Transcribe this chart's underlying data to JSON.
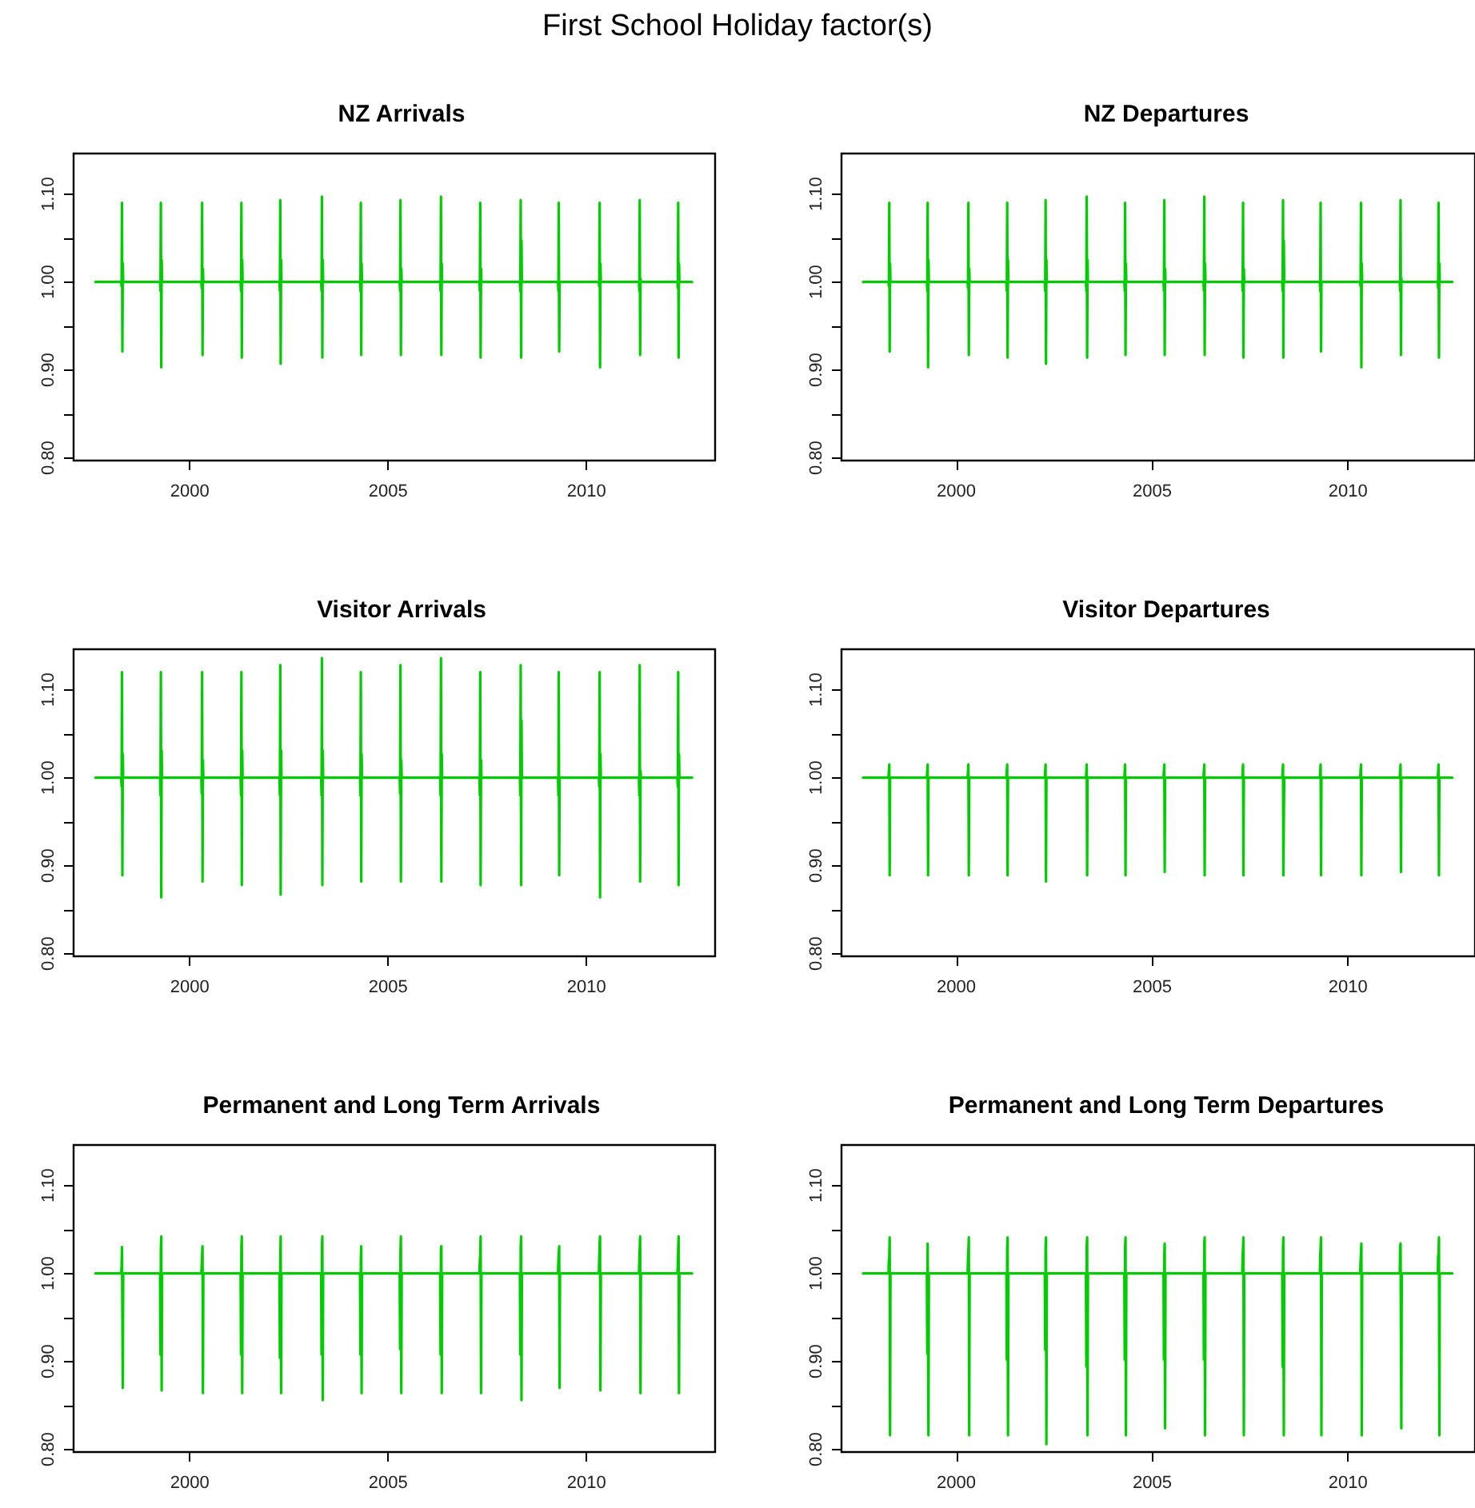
{
  "chart_data": [
    {
      "type": "line",
      "title": "NZ Arrivals",
      "annotations": [
        "First School Holiday factor(s)"
      ],
      "xlim": [
        1997.07,
        2013.24
      ],
      "xticks": [
        2000,
        2005,
        2010
      ],
      "ylim": [
        0.797,
        1.146
      ],
      "yticks": [
        {
          "value": 0.8,
          "label": "0.80"
        },
        {
          "value": 0.85,
          "label": null
        },
        {
          "value": 0.9,
          "label": "0.90"
        },
        {
          "value": 0.95,
          "label": null
        },
        {
          "value": 1.0,
          "label": "1.00"
        },
        {
          "value": 1.05,
          "label": null
        },
        {
          "value": 1.1,
          "label": "1.10"
        }
      ],
      "grid": false,
      "marker": "none",
      "x": [
        1997.62,
        1998.27,
        1998.28,
        1998.29,
        1998.3,
        1998.31,
        1998.32,
        1999.25,
        1999.26,
        1999.27,
        1999.28,
        1999.29,
        1999.3,
        2000.29,
        2000.3,
        2000.31,
        2000.32,
        2000.33,
        2000.34,
        2001.28,
        2001.29,
        2001.3,
        2001.31,
        2001.32,
        2001.33,
        2002.26,
        2002.27,
        2002.28,
        2002.29,
        2002.3,
        2002.31,
        2003.31,
        2003.32,
        2003.33,
        2003.34,
        2003.35,
        2003.36,
        2004.29,
        2004.3,
        2004.31,
        2004.32,
        2004.33,
        2004.34,
        2005.29,
        2005.3,
        2005.31,
        2005.32,
        2005.33,
        2005.34,
        2006.31,
        2006.32,
        2006.33,
        2006.34,
        2006.35,
        2006.36,
        2007.3,
        2007.31,
        2007.32,
        2007.33,
        2007.34,
        2007.35,
        2008.32,
        2008.33,
        2008.34,
        2008.35,
        2008.36,
        2008.37,
        2009.28,
        2009.29,
        2009.3,
        2009.31,
        2009.32,
        2009.33,
        2010.31,
        2010.32,
        2010.33,
        2010.34,
        2010.35,
        2010.36,
        2011.32,
        2011.33,
        2011.34,
        2011.35,
        2011.36,
        2011.37,
        2012.29,
        2012.3,
        2012.31,
        2012.32,
        2012.33,
        2012.34,
        2012.66
      ],
      "series": [
        {
          "color": "#00cc00",
          "values": [
            1,
            1,
            0.995,
            1.09,
            0.921,
            1.021,
            1,
            1,
            0.99,
            1.09,
            0.903,
            1.025,
            1,
            1,
            0.993,
            1.09,
            0.917,
            1.015,
            1,
            1,
            0.99,
            1.09,
            0.914,
            1.025,
            1,
            1,
            0.99,
            1.093,
            0.907,
            1.025,
            1,
            1,
            0.99,
            1.097,
            0.914,
            1.025,
            1,
            1,
            0.99,
            1.09,
            0.917,
            1.021,
            1,
            1,
            0.99,
            1.093,
            0.917,
            1.015,
            1,
            1,
            0.99,
            1.097,
            0.917,
            1.021,
            1,
            1,
            0.99,
            1.09,
            0.914,
            1.015,
            1,
            1,
            0.99,
            1.093,
            0.914,
            1.047,
            1,
            1,
            0.99,
            1.09,
            0.921,
            1,
            1,
            1,
            0.995,
            1.09,
            0.903,
            1.021,
            1,
            1,
            0.99,
            1.093,
            0.917,
            1.004,
            1,
            1,
            0.993,
            1.09,
            0.914,
            1.021,
            1,
            1
          ]
        }
      ]
    },
    {
      "type": "line",
      "title": "NZ Departures",
      "xlim": [
        1997.07,
        2013.24
      ],
      "xticks": [
        2000,
        2005,
        2010
      ],
      "ylim": [
        0.797,
        1.146
      ],
      "yticks": [
        {
          "value": 0.8,
          "label": "0.80"
        },
        {
          "value": 0.85,
          "label": null
        },
        {
          "value": 0.9,
          "label": "0.90"
        },
        {
          "value": 0.95,
          "label": null
        },
        {
          "value": 1.0,
          "label": "1.00"
        },
        {
          "value": 1.05,
          "label": null
        },
        {
          "value": 1.1,
          "label": "1.10"
        }
      ],
      "grid": false,
      "marker": "none",
      "x": [
        1997.62,
        1998.27,
        1998.28,
        1998.29,
        1998.3,
        1998.31,
        1998.32,
        1999.25,
        1999.26,
        1999.27,
        1999.28,
        1999.29,
        1999.3,
        2000.29,
        2000.3,
        2000.31,
        2000.32,
        2000.33,
        2000.34,
        2001.28,
        2001.29,
        2001.3,
        2001.31,
        2001.32,
        2001.33,
        2002.26,
        2002.27,
        2002.28,
        2002.29,
        2002.3,
        2002.31,
        2003.31,
        2003.32,
        2003.33,
        2003.34,
        2003.35,
        2003.36,
        2004.29,
        2004.3,
        2004.31,
        2004.32,
        2004.33,
        2004.34,
        2005.29,
        2005.3,
        2005.31,
        2005.32,
        2005.33,
        2005.34,
        2006.31,
        2006.32,
        2006.33,
        2006.34,
        2006.35,
        2006.36,
        2007.3,
        2007.31,
        2007.32,
        2007.33,
        2007.34,
        2007.35,
        2008.32,
        2008.33,
        2008.34,
        2008.35,
        2008.36,
        2008.37,
        2009.28,
        2009.29,
        2009.3,
        2009.31,
        2009.32,
        2009.33,
        2010.31,
        2010.32,
        2010.33,
        2010.34,
        2010.35,
        2010.36,
        2011.32,
        2011.33,
        2011.34,
        2011.35,
        2011.36,
        2011.37,
        2012.29,
        2012.3,
        2012.31,
        2012.32,
        2012.33,
        2012.34,
        2012.66
      ],
      "series": [
        {
          "color": "#00cc00",
          "values": [
            1,
            1,
            0.995,
            1.09,
            0.921,
            1.021,
            1,
            1,
            0.99,
            1.09,
            0.903,
            1.025,
            1,
            1,
            0.993,
            1.09,
            0.917,
            1.015,
            1,
            1,
            0.99,
            1.09,
            0.914,
            1.025,
            1,
            1,
            0.99,
            1.093,
            0.907,
            1.025,
            1,
            1,
            0.99,
            1.097,
            0.914,
            1.025,
            1,
            1,
            0.99,
            1.09,
            0.917,
            1.021,
            1,
            1,
            0.99,
            1.093,
            0.917,
            1.015,
            1,
            1,
            0.99,
            1.097,
            0.917,
            1.021,
            1,
            1,
            0.99,
            1.09,
            0.914,
            1.015,
            1,
            1,
            0.99,
            1.093,
            0.914,
            1.047,
            1,
            1,
            0.99,
            1.09,
            0.921,
            1,
            1,
            1,
            0.995,
            1.09,
            0.903,
            1.021,
            1,
            1,
            0.99,
            1.093,
            0.917,
            1.004,
            1,
            1,
            0.993,
            1.09,
            0.914,
            1.021,
            1,
            1
          ]
        }
      ]
    },
    {
      "type": "line",
      "title": "Visitor Arrivals",
      "xlim": [
        1997.07,
        2013.24
      ],
      "xticks": [
        2000,
        2005,
        2010
      ],
      "ylim": [
        0.797,
        1.146
      ],
      "yticks": [
        {
          "value": 0.8,
          "label": "0.80"
        },
        {
          "value": 0.85,
          "label": null
        },
        {
          "value": 0.9,
          "label": "0.90"
        },
        {
          "value": 0.95,
          "label": null
        },
        {
          "value": 1.0,
          "label": "1.00"
        },
        {
          "value": 1.05,
          "label": null
        },
        {
          "value": 1.1,
          "label": "1.10"
        }
      ],
      "grid": false,
      "marker": "none",
      "x": [
        1997.62,
        1998.27,
        1998.28,
        1998.29,
        1998.3,
        1998.31,
        1998.32,
        1999.25,
        1999.26,
        1999.27,
        1999.28,
        1999.29,
        1999.3,
        2000.29,
        2000.3,
        2000.31,
        2000.32,
        2000.33,
        2000.34,
        2001.28,
        2001.29,
        2001.3,
        2001.31,
        2001.32,
        2001.33,
        2002.26,
        2002.27,
        2002.28,
        2002.29,
        2002.3,
        2002.31,
        2003.31,
        2003.32,
        2003.33,
        2003.34,
        2003.35,
        2003.36,
        2004.29,
        2004.3,
        2004.31,
        2004.32,
        2004.33,
        2004.34,
        2005.29,
        2005.3,
        2005.31,
        2005.32,
        2005.33,
        2005.34,
        2006.31,
        2006.32,
        2006.33,
        2006.34,
        2006.35,
        2006.36,
        2007.3,
        2007.31,
        2007.32,
        2007.33,
        2007.34,
        2007.35,
        2008.32,
        2008.33,
        2008.34,
        2008.35,
        2008.36,
        2008.37,
        2009.28,
        2009.29,
        2009.3,
        2009.31,
        2009.32,
        2009.33,
        2010.31,
        2010.32,
        2010.33,
        2010.34,
        2010.35,
        2010.36,
        2011.32,
        2011.33,
        2011.34,
        2011.35,
        2011.36,
        2011.37,
        2012.29,
        2012.3,
        2012.31,
        2012.32,
        2012.33,
        2012.34,
        2012.66
      ],
      "series": [
        {
          "color": "#00cc00",
          "values": [
            1,
            1,
            0.99,
            1.12,
            0.889,
            1.027,
            1,
            1,
            0.98,
            1.12,
            0.864,
            1.031,
            1,
            1,
            0.982,
            1.12,
            0.882,
            1.02,
            1,
            1,
            0.98,
            1.12,
            0.878,
            1.031,
            1,
            1,
            0.98,
            1.128,
            0.867,
            1.031,
            1,
            1,
            0.98,
            1.136,
            0.878,
            1.031,
            1,
            1,
            0.98,
            1.12,
            0.882,
            1.027,
            1,
            1,
            0.982,
            1.128,
            0.882,
            1.02,
            1,
            1,
            0.98,
            1.136,
            0.882,
            1.027,
            1,
            1,
            0.98,
            1.12,
            0.878,
            1.02,
            1,
            1,
            0.98,
            1.128,
            0.878,
            1.065,
            1,
            1,
            0.98,
            1.12,
            0.889,
            1,
            1,
            1,
            0.99,
            1.12,
            0.864,
            1.027,
            1,
            1,
            0.98,
            1.128,
            0.882,
            1.008,
            1,
            1,
            0.99,
            1.12,
            0.878,
            1.027,
            1,
            1
          ]
        }
      ]
    },
    {
      "type": "line",
      "title": "Visitor Departures",
      "xlim": [
        1997.07,
        2013.24
      ],
      "xticks": [
        2000,
        2005,
        2010
      ],
      "ylim": [
        0.797,
        1.146
      ],
      "yticks": [
        {
          "value": 0.8,
          "label": "0.80"
        },
        {
          "value": 0.85,
          "label": null
        },
        {
          "value": 0.9,
          "label": "0.90"
        },
        {
          "value": 0.95,
          "label": null
        },
        {
          "value": 1.0,
          "label": "1.00"
        },
        {
          "value": 1.05,
          "label": null
        },
        {
          "value": 1.1,
          "label": "1.10"
        }
      ],
      "grid": false,
      "marker": "none",
      "x": [
        1997.62,
        1998.27,
        1998.28,
        1998.29,
        1998.3,
        1998.31,
        1998.32,
        1999.25,
        1999.26,
        1999.27,
        1999.28,
        1999.29,
        1999.3,
        2000.29,
        2000.3,
        2000.31,
        2000.32,
        2000.33,
        2000.34,
        2001.28,
        2001.29,
        2001.3,
        2001.31,
        2001.32,
        2001.33,
        2002.26,
        2002.27,
        2002.28,
        2002.29,
        2002.3,
        2002.31,
        2003.31,
        2003.32,
        2003.33,
        2003.34,
        2003.35,
        2003.36,
        2004.29,
        2004.3,
        2004.31,
        2004.32,
        2004.33,
        2004.34,
        2005.29,
        2005.3,
        2005.31,
        2005.32,
        2005.33,
        2005.34,
        2006.31,
        2006.32,
        2006.33,
        2006.34,
        2006.35,
        2006.36,
        2007.3,
        2007.31,
        2007.32,
        2007.33,
        2007.34,
        2007.35,
        2008.32,
        2008.33,
        2008.34,
        2008.35,
        2008.36,
        2008.37,
        2009.28,
        2009.29,
        2009.3,
        2009.31,
        2009.32,
        2009.33,
        2010.31,
        2010.32,
        2010.33,
        2010.34,
        2010.35,
        2010.36,
        2011.32,
        2011.33,
        2011.34,
        2011.35,
        2011.36,
        2011.37,
        2012.29,
        2012.3,
        2012.31,
        2012.32,
        2012.33,
        2012.34,
        2012.66
      ],
      "series": [
        {
          "color": "#00cc00",
          "values": [
            1,
            1,
            1.008,
            1.015,
            0.889,
            1,
            1,
            1,
            1.008,
            1.015,
            0.889,
            1,
            1,
            1,
            1.008,
            1.015,
            0.889,
            1,
            1,
            1,
            1.008,
            1.015,
            0.889,
            1,
            1,
            1,
            1.008,
            1.015,
            0.882,
            1,
            1,
            1,
            1.008,
            1.015,
            0.889,
            1,
            1,
            1,
            1.008,
            1.015,
            0.889,
            1,
            1,
            1,
            1.008,
            1.015,
            0.893,
            1,
            1,
            1,
            1.008,
            1.015,
            0.889,
            1,
            1,
            1,
            1.008,
            1.015,
            0.889,
            1,
            1,
            1,
            1.008,
            1.015,
            0.889,
            0.949,
            1,
            1,
            1.008,
            1.015,
            0.889,
            1,
            1,
            1,
            1.008,
            1.015,
            0.889,
            1,
            1,
            1,
            1.008,
            1.015,
            0.893,
            1,
            1,
            1,
            1.008,
            1.015,
            0.889,
            1,
            1,
            1
          ]
        }
      ]
    },
    {
      "type": "line",
      "title": "Permanent and Long Term Arrivals",
      "xlim": [
        1997.07,
        2013.24
      ],
      "xticks": [
        2000,
        2005,
        2010
      ],
      "ylim": [
        0.797,
        1.146
      ],
      "yticks": [
        {
          "value": 0.8,
          "label": "0.80"
        },
        {
          "value": 0.85,
          "label": null
        },
        {
          "value": 0.9,
          "label": "0.90"
        },
        {
          "value": 0.95,
          "label": null
        },
        {
          "value": 1.0,
          "label": "1.00"
        },
        {
          "value": 1.05,
          "label": null
        },
        {
          "value": 1.1,
          "label": "1.10"
        }
      ],
      "grid": false,
      "marker": "none",
      "x": [
        1997.62,
        1998.27,
        1998.28,
        1998.29,
        1998.3,
        1998.31,
        1998.32,
        1999.25,
        1999.26,
        1999.27,
        1999.28,
        1999.29,
        1999.3,
        2000.29,
        2000.3,
        2000.31,
        2000.32,
        2000.33,
        2000.34,
        2001.28,
        2001.29,
        2001.3,
        2001.31,
        2001.32,
        2001.33,
        2002.26,
        2002.27,
        2002.28,
        2002.29,
        2002.3,
        2002.31,
        2003.31,
        2003.32,
        2003.33,
        2003.34,
        2003.35,
        2003.36,
        2004.29,
        2004.3,
        2004.31,
        2004.32,
        2004.33,
        2004.34,
        2005.29,
        2005.3,
        2005.31,
        2005.32,
        2005.33,
        2005.34,
        2006.31,
        2006.32,
        2006.33,
        2006.34,
        2006.35,
        2006.36,
        2007.3,
        2007.31,
        2007.32,
        2007.33,
        2007.34,
        2007.35,
        2008.32,
        2008.33,
        2008.34,
        2008.35,
        2008.36,
        2008.37,
        2009.28,
        2009.29,
        2009.3,
        2009.31,
        2009.32,
        2009.33,
        2010.31,
        2010.32,
        2010.33,
        2010.34,
        2010.35,
        2010.36,
        2011.32,
        2011.33,
        2011.34,
        2011.35,
        2011.36,
        2011.37,
        2012.29,
        2012.3,
        2012.31,
        2012.32,
        2012.33,
        2012.34,
        2012.66
      ],
      "series": [
        {
          "color": "#00cc00",
          "values": [
            1,
            1,
            1.008,
            1.03,
            1.031,
            0.87,
            1,
            1,
            0.908,
            1.028,
            1.042,
            0.867,
            1,
            1,
            1.01,
            1.022,
            1.031,
            0.864,
            1,
            1,
            0.908,
            1.03,
            1.042,
            0.864,
            1,
            1,
            0.904,
            1.015,
            1.042,
            0.864,
            1,
            1,
            0.908,
            1.03,
            1.042,
            0.856,
            1,
            1,
            0.908,
            1.015,
            1.031,
            0.864,
            1,
            1,
            0.914,
            1.025,
            1.042,
            0.864,
            1,
            1,
            0.908,
            1.028,
            1.031,
            0.864,
            1,
            1,
            1.015,
            1.02,
            1.042,
            0.864,
            1,
            1,
            0.908,
            1.03,
            1.042,
            0.856,
            1,
            1,
            1.015,
            1.015,
            1.031,
            0.87,
            1,
            1,
            1,
            1.035,
            1.042,
            0.867,
            1,
            1,
            1,
            1.028,
            1.042,
            0.864,
            1,
            1,
            1.01,
            1.03,
            1.042,
            0.864,
            1,
            1
          ]
        }
      ]
    },
    {
      "type": "line",
      "title": "Permanent and Long Term Departures",
      "xlim": [
        1997.07,
        2013.24
      ],
      "xticks": [
        2000,
        2005,
        2010
      ],
      "ylim": [
        0.797,
        1.146
      ],
      "yticks": [
        {
          "value": 0.8,
          "label": "0.80"
        },
        {
          "value": 0.85,
          "label": null
        },
        {
          "value": 0.9,
          "label": "0.90"
        },
        {
          "value": 0.95,
          "label": null
        },
        {
          "value": 1.0,
          "label": "1.00"
        },
        {
          "value": 1.05,
          "label": null
        },
        {
          "value": 1.1,
          "label": "1.10"
        }
      ],
      "grid": false,
      "marker": "none",
      "x": [
        1997.62,
        1998.27,
        1998.28,
        1998.29,
        1998.3,
        1998.31,
        1998.32,
        1999.25,
        1999.26,
        1999.27,
        1999.28,
        1999.29,
        1999.3,
        2000.29,
        2000.3,
        2000.31,
        2000.32,
        2000.33,
        2000.34,
        2001.28,
        2001.29,
        2001.3,
        2001.31,
        2001.32,
        2001.33,
        2002.26,
        2002.27,
        2002.28,
        2002.29,
        2002.3,
        2002.31,
        2003.31,
        2003.32,
        2003.33,
        2003.34,
        2003.35,
        2003.36,
        2004.29,
        2004.3,
        2004.31,
        2004.32,
        2004.33,
        2004.34,
        2005.29,
        2005.3,
        2005.31,
        2005.32,
        2005.33,
        2005.34,
        2006.31,
        2006.32,
        2006.33,
        2006.34,
        2006.35,
        2006.36,
        2007.3,
        2007.31,
        2007.32,
        2007.33,
        2007.34,
        2007.35,
        2008.32,
        2008.33,
        2008.34,
        2008.35,
        2008.36,
        2008.37,
        2009.28,
        2009.29,
        2009.3,
        2009.31,
        2009.32,
        2009.33,
        2010.31,
        2010.32,
        2010.33,
        2010.34,
        2010.35,
        2010.36,
        2011.32,
        2011.33,
        2011.34,
        2011.35,
        2011.36,
        2011.37,
        2012.29,
        2012.3,
        2012.31,
        2012.32,
        2012.33,
        2012.34,
        2012.66
      ],
      "series": [
        {
          "color": "#00cc00",
          "values": [
            1,
            1,
            1.015,
            1.02,
            1.041,
            0.816,
            1,
            1,
            0.909,
            1.034,
            1.034,
            0.816,
            1,
            1,
            1.018,
            1.027,
            1.041,
            0.816,
            1,
            1,
            0.902,
            1.03,
            1.041,
            0.816,
            1,
            1,
            0.913,
            1.03,
            1.041,
            0.806,
            1,
            1,
            0.894,
            1.03,
            1.041,
            0.816,
            1,
            1,
            0.902,
            1.03,
            1.041,
            0.816,
            1,
            1,
            0.902,
            1.022,
            1.034,
            0.824,
            1,
            1,
            0.902,
            1.034,
            1.041,
            0.816,
            1,
            1,
            1.02,
            1.03,
            1.041,
            0.816,
            1,
            1,
            0.894,
            1.03,
            1.041,
            0.816,
            1,
            1,
            1.02,
            1.03,
            1.041,
            0.816,
            1,
            1,
            1.015,
            1.022,
            1.034,
            0.816,
            1,
            1,
            1.03,
            1.034,
            1.034,
            0.824,
            1,
            1,
            1.02,
            1.022,
            1.041,
            0.816,
            1,
            1
          ]
        }
      ]
    }
  ]
}
